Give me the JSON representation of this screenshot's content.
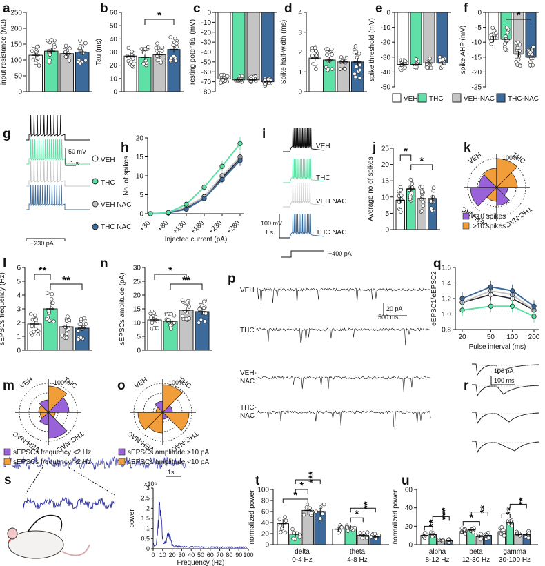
{
  "colors": {
    "VEH": "#ffffff",
    "THC": "#5fe0a6",
    "VEH-NAC": "#c4c4c4",
    "THC-NAC": "#3c6a9a",
    "edge": "#222222",
    "purple": "#9a62d8",
    "orange": "#f19e3a",
    "blue": "#24289a"
  },
  "groups": [
    "VEH",
    "THC",
    "VEH-NAC",
    "THC-NAC"
  ],
  "group_legend": [
    "VEH",
    "THC",
    "VEH-NAC",
    "THC-NAC"
  ],
  "panels": {
    "a": {
      "label": "a"
    },
    "b": {
      "label": "b"
    },
    "c": {
      "label": "c"
    },
    "d": {
      "label": "d"
    },
    "e": {
      "label": "e"
    },
    "f": {
      "label": "f"
    },
    "g": {
      "label": "g",
      "scale_mv": "50 mV",
      "scale_s": "1 s",
      "current": "+230 pA",
      "traces": [
        "VEH",
        "THC",
        "VEH NAC",
        "THC NAC"
      ]
    },
    "h": {
      "label": "h"
    },
    "i": {
      "label": "i",
      "scale_mv": "100 mV",
      "scale_s": "1 s",
      "current": "+400 pA",
      "traces": [
        "VEH",
        "THC",
        "VEH NAC",
        "THC NAC"
      ]
    },
    "j": {
      "label": "j"
    },
    "k": {
      "label": "k",
      "legend": [
        "<10 spikes",
        ">10 spikes"
      ]
    },
    "l": {
      "label": "l"
    },
    "n": {
      "label": "n"
    },
    "m": {
      "label": "m",
      "legend": [
        "sEPSCs frequency <2 Hz",
        "sEPSCs frequency >2 Hz"
      ]
    },
    "o": {
      "label": "o",
      "legend": [
        "sEPSCs amplitude >10 pA",
        "sEPSCs amplitude <10 pA"
      ]
    },
    "p": {
      "label": "p",
      "traces": [
        "VEH",
        "THC",
        "VEH-\nNAC",
        "THC-\nNAC"
      ],
      "scale_pa": "20 pA",
      "scale_ms": "500 ms"
    },
    "q": {
      "label": "q"
    },
    "r": {
      "label": "r",
      "scale_pa": "100 pA",
      "scale_ms": "100 ms"
    },
    "s": {
      "label": "s",
      "scale_s": "1s",
      "exp_label": "x10⁴"
    },
    "t": {
      "label": "t"
    },
    "u": {
      "label": "u"
    }
  },
  "chart_data": [
    {
      "id": "a",
      "type": "bar",
      "ylabel": "input resistance (MΩ)",
      "ylim": [
        0,
        250
      ],
      "yticks": [
        0,
        50,
        100,
        150,
        200,
        250
      ],
      "categories": [
        "VEH",
        "THC",
        "VEH-NAC",
        "THC-NAC"
      ],
      "values": [
        115,
        128,
        120,
        125
      ],
      "errors": [
        8,
        10,
        7,
        9
      ],
      "sig": []
    },
    {
      "id": "b",
      "type": "bar",
      "ylabel": "Tau (ms)",
      "ylim": [
        0,
        60
      ],
      "yticks": [
        0,
        10,
        20,
        30,
        40,
        50,
        60
      ],
      "categories": [
        "VEH",
        "THC",
        "VEH-NAC",
        "THC-NAC"
      ],
      "values": [
        27,
        26,
        28,
        32
      ],
      "errors": [
        2,
        2,
        2.5,
        2.5
      ],
      "sig": [
        {
          "from": 1,
          "to": 3,
          "label": "*"
        }
      ]
    },
    {
      "id": "c",
      "type": "bar",
      "ylabel": "resting potential (mV)",
      "ylim": [
        -80,
        0
      ],
      "yticks": [
        0,
        -10,
        -20,
        -30,
        -40,
        -50,
        -60,
        -70,
        -80
      ],
      "categories": [
        "VEH",
        "THC",
        "VEH-NAC",
        "THC-NAC"
      ],
      "values": [
        -67,
        -68,
        -68,
        -70
      ],
      "errors": [
        1,
        1,
        1,
        1
      ],
      "sig": []
    },
    {
      "id": "d",
      "type": "bar",
      "ylabel": "Spike half-width (ms)",
      "ylim": [
        0,
        4
      ],
      "yticks": [
        0,
        1,
        2,
        3,
        4
      ],
      "categories": [
        "VEH",
        "THC",
        "VEH-NAC",
        "THC-NAC"
      ],
      "values": [
        1.7,
        1.6,
        1.5,
        1.5
      ],
      "errors": [
        0.15,
        0.15,
        0.1,
        0.2
      ],
      "sig": []
    },
    {
      "id": "e",
      "type": "bar",
      "ylabel": "spike threshold (mV)",
      "ylim": [
        -50,
        0
      ],
      "yticks": [
        0,
        -10,
        -20,
        -30,
        -40,
        -50
      ],
      "categories": [
        "VEH",
        "THC",
        "VEH-NAC",
        "THC-NAC"
      ],
      "values": [
        -35,
        -35,
        -34,
        -34
      ],
      "errors": [
        1,
        1,
        1,
        1
      ],
      "sig": []
    },
    {
      "id": "f",
      "type": "bar",
      "ylabel": "spike AHP (mV)",
      "ylim": [
        -25,
        0
      ],
      "yticks": [
        0,
        -5,
        -10,
        -15,
        -20,
        -25
      ],
      "categories": [
        "VEH",
        "THC",
        "VEH-NAC",
        "THC-NAC"
      ],
      "values": [
        -9,
        -9,
        -14,
        -15
      ],
      "errors": [
        1,
        1,
        1,
        1
      ],
      "sig": [
        {
          "from": 1,
          "to": 3,
          "label": "*"
        }
      ]
    },
    {
      "id": "h",
      "type": "line",
      "ylabel": "No. of spikes",
      "xlabel": "Injected current (pA)",
      "ylim": [
        0,
        20
      ],
      "yticks": [
        0,
        5,
        10,
        15,
        20
      ],
      "x": [
        30,
        80,
        130,
        180,
        230,
        280
      ],
      "xticklabels": [
        "+30",
        "+80",
        "+130",
        "+180",
        "+230",
        "+280"
      ],
      "series": [
        {
          "name": "VEH",
          "values": [
            0,
            0.2,
            1.5,
            4.5,
            9.5,
            14.5
          ]
        },
        {
          "name": "THC",
          "values": [
            0,
            0.3,
            2.5,
            7,
            12.5,
            18.5
          ]
        },
        {
          "name": "VEH-NAC",
          "values": [
            0,
            0.2,
            1.8,
            4.5,
            10,
            15
          ]
        },
        {
          "name": "THC-NAC",
          "values": [
            0,
            0.2,
            1.2,
            4,
            9,
            14
          ]
        }
      ]
    },
    {
      "id": "j",
      "type": "bar",
      "ylabel": "Average no of spikes",
      "ylim": [
        0,
        25
      ],
      "yticks": [
        0,
        5,
        10,
        15,
        20,
        25
      ],
      "categories": [
        "VEH",
        "THC",
        "VEH-NAC",
        "THC-NAC"
      ],
      "values": [
        9,
        12.5,
        9.5,
        9.5
      ],
      "errors": [
        1,
        1,
        1,
        1
      ],
      "sig": [
        {
          "from": 0,
          "to": 1,
          "label": "*"
        },
        {
          "from": 1,
          "to": 3,
          "label": "*"
        }
      ]
    },
    {
      "id": "l",
      "type": "bar",
      "ylabel": "sEPSCs frequency (Hz)",
      "ylim": [
        0,
        6
      ],
      "yticks": [
        0,
        1,
        2,
        3,
        4,
        5,
        6
      ],
      "categories": [
        "VEH",
        "THC",
        "VEH-NAC",
        "THC-NAC"
      ],
      "values": [
        1.9,
        3.0,
        1.7,
        1.6
      ],
      "errors": [
        0.2,
        0.3,
        0.2,
        0.2
      ],
      "sig": [
        {
          "from": 0,
          "to": 1,
          "label": "**"
        },
        {
          "from": 1,
          "to": 3,
          "label": "**"
        }
      ]
    },
    {
      "id": "n",
      "type": "bar",
      "ylabel": "sEPSCs amplitude (pA)",
      "ylim": [
        0,
        30
      ],
      "yticks": [
        0,
        5,
        10,
        15,
        20,
        25,
        30
      ],
      "categories": [
        "VEH",
        "THC",
        "VEH-NAC",
        "THC-NAC"
      ],
      "values": [
        11,
        10.5,
        14.5,
        14
      ],
      "errors": [
        0.8,
        0.8,
        1,
        1.2
      ],
      "sig": [
        {
          "from": 0,
          "to": 2,
          "label": "*"
        },
        {
          "from": 1,
          "to": 3,
          "label": "**"
        }
      ]
    },
    {
      "id": "q",
      "type": "line",
      "ylabel": "eEPSC1/eEPSC2",
      "xlabel": "Pulse interval (ms)",
      "ylim": [
        0.8,
        1.6
      ],
      "yticks": [
        0.8,
        1.0,
        1.2,
        1.4,
        1.6
      ],
      "x": [
        20,
        50,
        100,
        200
      ],
      "xticklabels": [
        "20",
        "50",
        "100",
        "200"
      ],
      "series": [
        {
          "name": "VEH",
          "values": [
            1.15,
            1.25,
            1.2,
            1.05
          ]
        },
        {
          "name": "THC",
          "values": [
            1.05,
            1.1,
            1.1,
            0.97
          ]
        },
        {
          "name": "VEH-NAC",
          "values": [
            1.15,
            1.3,
            1.25,
            1.05
          ]
        },
        {
          "name": "THC-NAC",
          "values": [
            1.2,
            1.35,
            1.3,
            1.1
          ]
        }
      ]
    },
    {
      "id": "s",
      "type": "line",
      "ylabel": "power",
      "xlabel": "Frequency (Hz)",
      "xlim": [
        0,
        100
      ],
      "xticks": [
        0,
        10,
        20,
        30,
        40,
        50,
        60,
        70,
        80,
        90,
        100
      ],
      "ylim": [
        0,
        3
      ],
      "yticks": [
        0,
        0.5,
        1,
        1.5,
        2,
        2.5,
        3
      ],
      "yticklabels": [
        "0",
        "0.5",
        "1",
        "1.5",
        "2",
        "2.5",
        "3"
      ]
    },
    {
      "id": "t",
      "type": "bar",
      "ylabel": "normalized power",
      "ylim": [
        0,
        100
      ],
      "yticks": [
        0,
        20,
        40,
        60,
        80,
        100
      ],
      "bands": [
        {
          "name": "delta",
          "range": "0-4 Hz",
          "values": [
            38,
            19,
            62,
            60
          ],
          "errors": [
            8,
            5,
            8,
            7
          ]
        },
        {
          "name": "theta",
          "range": "4-8 Hz",
          "values": [
            28,
            32,
            17,
            14
          ],
          "errors": [
            4,
            4,
            3,
            3
          ]
        }
      ],
      "sig": [
        {
          "band": 0,
          "from": 0,
          "to": 2,
          "label": "*"
        },
        {
          "band": 0,
          "from": 1,
          "to": 2,
          "label": "*"
        },
        {
          "band": 0,
          "from": 1,
          "to": 3,
          "label": "***"
        },
        {
          "band": 1,
          "from": 1,
          "to": 2,
          "label": "*"
        },
        {
          "band": 1,
          "from": 1,
          "to": 3,
          "label": "**"
        }
      ]
    },
    {
      "id": "u",
      "type": "bar",
      "ylabel": "normalized power",
      "ylim": [
        0,
        60
      ],
      "yticks": [
        0,
        20,
        40,
        60
      ],
      "bands": [
        {
          "name": "alpha",
          "range": "8-12 Hz",
          "values": [
            10,
            11,
            5,
            4
          ],
          "errors": [
            1.5,
            1.5,
            1,
            1
          ]
        },
        {
          "name": "beta",
          "range": "12-30 Hz",
          "values": [
            14,
            16,
            9,
            10
          ],
          "errors": [
            2,
            1.5,
            2,
            2
          ]
        },
        {
          "name": "gamma",
          "range": "30-100 Hz",
          "values": [
            14,
            24,
            11,
            11
          ],
          "errors": [
            3,
            2,
            2,
            2
          ]
        }
      ],
      "sig": [
        {
          "band": 0,
          "from": 0,
          "to": 1,
          "label": "**"
        },
        {
          "band": 0,
          "from": 1,
          "to": 3,
          "label": "***"
        },
        {
          "band": 1,
          "from": 0,
          "to": 2,
          "label": "*"
        },
        {
          "band": 1,
          "from": 1,
          "to": 3,
          "label": "**"
        },
        {
          "band": 2,
          "from": 0,
          "to": 1,
          "label": "**"
        },
        {
          "band": 2,
          "from": 1,
          "to": 3,
          "label": "**"
        }
      ]
    }
  ]
}
